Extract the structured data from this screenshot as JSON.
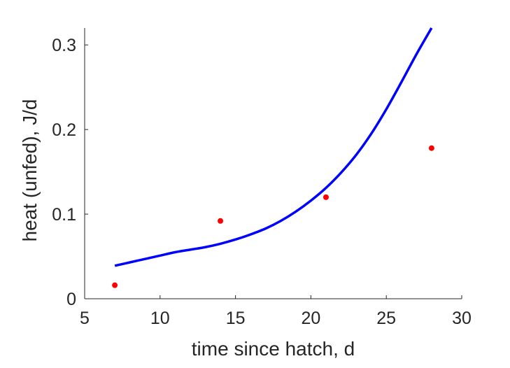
{
  "chart_data": {
    "type": "scatter",
    "title": "",
    "xlabel": "time since hatch, d",
    "ylabel": "heat (unfed), J/d",
    "xlim": [
      5,
      30
    ],
    "ylim": [
      0,
      0.32
    ],
    "xticks": [
      5,
      10,
      15,
      20,
      25,
      30
    ],
    "yticks": [
      0,
      0.1,
      0.2,
      0.3
    ],
    "xtick_labels": [
      "5",
      "10",
      "15",
      "20",
      "25",
      "30"
    ],
    "ytick_labels": [
      "0",
      "0.1",
      "0.2",
      "0.3"
    ],
    "grid": false,
    "legend": "none",
    "series": [
      {
        "kind": "points",
        "color": "#ff0000",
        "x": [
          7,
          14,
          21,
          28
        ],
        "y": [
          0.016,
          0.092,
          0.12,
          0.178
        ]
      },
      {
        "kind": "line",
        "color": "#0000ff",
        "x": [
          7,
          8,
          9,
          10,
          11,
          12,
          13,
          14,
          15,
          16,
          17,
          18,
          19,
          20,
          21,
          22,
          23,
          24,
          25,
          26,
          27,
          28
        ],
        "y": [
          0.039,
          0.043,
          0.047,
          0.051,
          0.055,
          0.058,
          0.061,
          0.065,
          0.07,
          0.076,
          0.083,
          0.092,
          0.103,
          0.116,
          0.131,
          0.149,
          0.17,
          0.195,
          0.224,
          0.256,
          0.289,
          0.32
        ]
      }
    ]
  }
}
